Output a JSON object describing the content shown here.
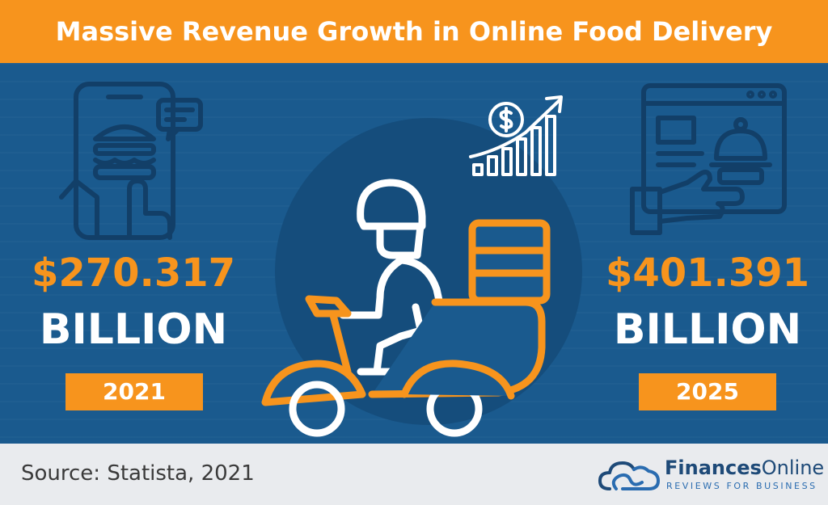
{
  "header": {
    "title": "Massive Revenue Growth in Online Food Delivery"
  },
  "left_stat": {
    "amount": "$270.317",
    "unit": "BILLION",
    "year": "2021"
  },
  "right_stat": {
    "amount": "$401.391",
    "unit": "BILLION",
    "year": "2025"
  },
  "footer": {
    "source": "Source: Statista, 2021",
    "brand_bold": "Finances",
    "brand_regular": "Online",
    "brand_tagline": "REVIEWS FOR BUSINESS"
  },
  "colors": {
    "accent": "#f7941d",
    "background": "#1a5a8e",
    "icon_line": "#123f68"
  },
  "icons": [
    "phone-order-icon",
    "delivery-scooter-icon",
    "revenue-growth-icon",
    "web-order-icon",
    "cloud-logo-icon"
  ]
}
